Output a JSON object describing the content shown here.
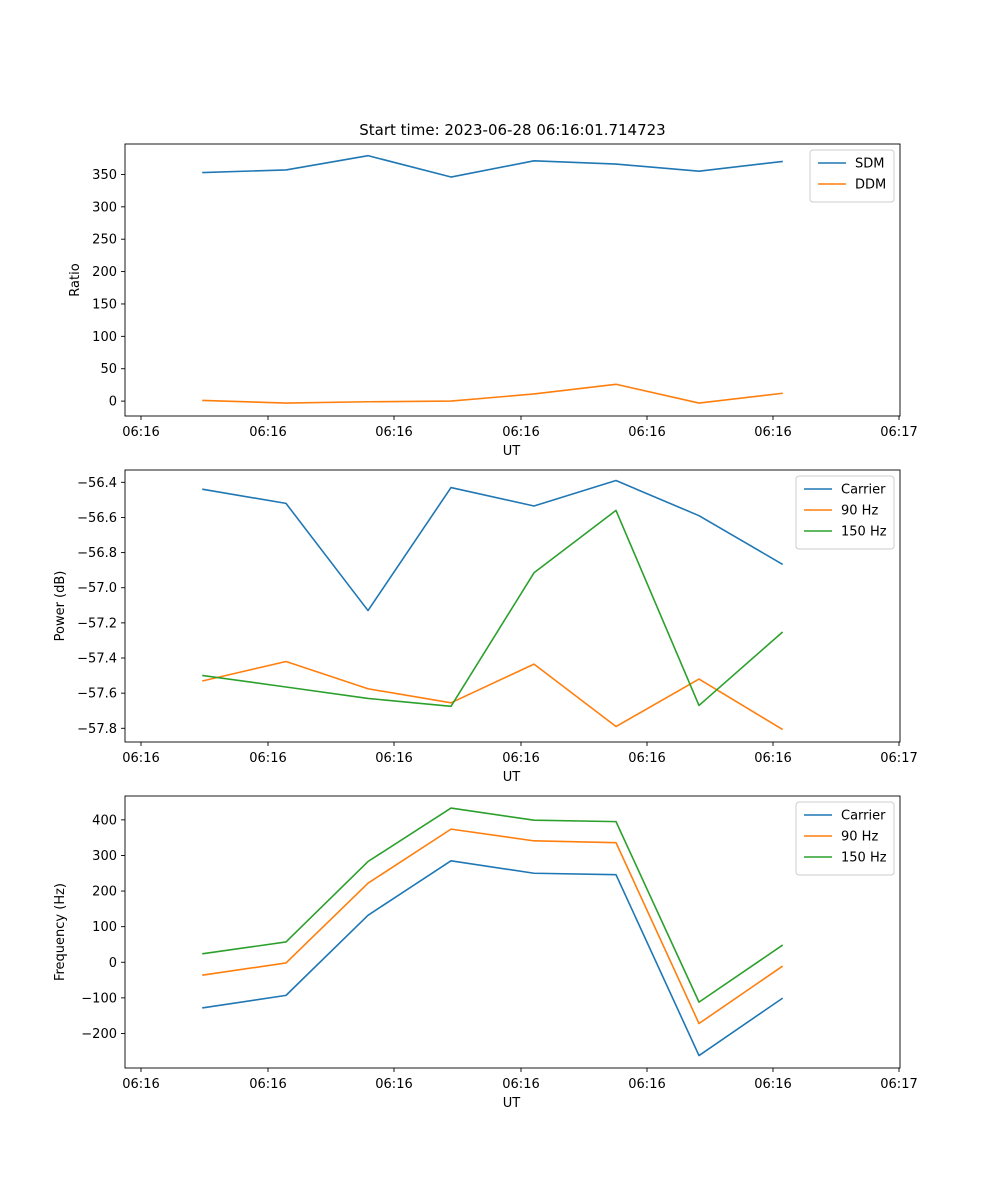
{
  "title": "Start time: 2023-06-28 06:16:01.714723",
  "chart_data": [
    {
      "type": "line",
      "xlabel": "UT",
      "ylabel": "Ratio",
      "x_tick_labels": [
        "06:16",
        "06:16",
        "06:16",
        "06:16",
        "06:16",
        "06:16",
        "06:17"
      ],
      "y_ticks": [
        0,
        50,
        100,
        150,
        200,
        250,
        300,
        350
      ],
      "ylim": [
        -23,
        397
      ],
      "legend_position": "top-right",
      "series": [
        {
          "name": "SDM",
          "color": "#1f77b4",
          "values": [
            353,
            357,
            379,
            346,
            371,
            366,
            355,
            370
          ]
        },
        {
          "name": "DDM",
          "color": "#ff7f0e",
          "values": [
            1,
            -3,
            -1,
            0,
            11,
            26,
            -3,
            12
          ]
        }
      ]
    },
    {
      "type": "line",
      "xlabel": "UT",
      "ylabel": "Power (dB)",
      "x_tick_labels": [
        "06:16",
        "06:16",
        "06:16",
        "06:16",
        "06:16",
        "06:16",
        "06:17"
      ],
      "y_ticks": [
        -56.4,
        -56.6,
        -56.8,
        -57.0,
        -57.2,
        -57.4,
        -57.6,
        -57.8
      ],
      "y_tick_labels": [
        "−56.4",
        "−56.6",
        "−56.8",
        "−57.0",
        "−57.2",
        "−57.4",
        "−57.6",
        "−57.8"
      ],
      "ylim": [
        -57.878,
        -56.33
      ],
      "legend_position": "top-right",
      "series": [
        {
          "name": "Carrier",
          "color": "#1f77b4",
          "values": [
            -56.44,
            -56.52,
            -57.13,
            -56.43,
            -56.535,
            -56.39,
            -56.59,
            -56.865
          ]
        },
        {
          "name": "90 Hz",
          "color": "#ff7f0e",
          "values": [
            -57.53,
            -57.42,
            -57.575,
            -57.655,
            -57.435,
            -57.79,
            -57.52,
            -57.805
          ]
        },
        {
          "name": "150 Hz",
          "color": "#2ca02c",
          "values": [
            -57.5,
            -57.565,
            -57.63,
            -57.675,
            -56.915,
            -56.56,
            -57.67,
            -57.255
          ]
        }
      ]
    },
    {
      "type": "line",
      "xlabel": "UT",
      "ylabel": "Frequency (Hz)",
      "x_tick_labels": [
        "06:16",
        "06:16",
        "06:16",
        "06:16",
        "06:16",
        "06:16",
        "06:17"
      ],
      "y_ticks": [
        400,
        300,
        200,
        100,
        0,
        -100,
        -200
      ],
      "y_tick_labels": [
        "400",
        "300",
        "200",
        "100",
        "0",
        "−100",
        "−200"
      ],
      "ylim": [
        -297,
        467
      ],
      "legend_position": "top-right",
      "series": [
        {
          "name": "Carrier",
          "color": "#1f77b4",
          "values": [
            -128,
            -93,
            132,
            285,
            250,
            246,
            -262,
            -102
          ]
        },
        {
          "name": "90 Hz",
          "color": "#ff7f0e",
          "values": [
            -36,
            -2,
            222,
            374,
            341,
            336,
            -172,
            -12
          ]
        },
        {
          "name": "150 Hz",
          "color": "#2ca02c",
          "values": [
            24,
            57,
            283,
            433,
            399,
            395,
            -112,
            47
          ]
        }
      ]
    }
  ]
}
